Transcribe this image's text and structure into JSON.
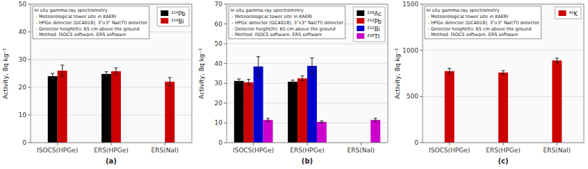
{
  "chart_data": [
    {
      "type": "bar",
      "xlabel": "(a)",
      "ylabel": "Activity, Bq kg⁻¹",
      "categories": [
        "ISOCS(HPGe)",
        "ERS(HPGe)",
        "ERS(NaI)"
      ],
      "series": [
        {
          "name": "²¹⁴Pb",
          "color": "#000000",
          "values": [
            24.0,
            24.8,
            null
          ],
          "errors": [
            1.0,
            0.8,
            null
          ]
        },
        {
          "name": "²¹⁴Bi",
          "color": "#cc0000",
          "values": [
            26.0,
            25.8,
            22.0
          ],
          "errors": [
            2.0,
            1.2,
            1.5
          ]
        }
      ],
      "ylim": [
        0,
        50
      ],
      "yticks": [
        0,
        10,
        20,
        30,
        40,
        50
      ],
      "grid": true,
      "legend": "upper right",
      "annotation": "In situ gamma-ray spectrometry\n - Meteorological tower site in KAERI\n - HPGe detector (GC4018), 3\"x3\" NaI(Tl) detector\n - Detector height(h): 65 cm above the ground\n - Method: ISOCS software, ERS software"
    },
    {
      "type": "bar",
      "xlabel": "(b)",
      "ylabel": "Activity, Bq kg⁻¹",
      "categories": [
        "ISOCS(HPGe)",
        "ERS(HPGe)",
        "ERS(NaI)"
      ],
      "series": [
        {
          "name": "²²⁸Ac",
          "color": "#000000",
          "values": [
            31.2,
            30.8,
            null
          ],
          "errors": [
            1.0,
            0.8,
            null
          ]
        },
        {
          "name": "²¹²Pb",
          "color": "#cc0000",
          "values": [
            30.5,
            32.5,
            null
          ],
          "errors": [
            1.5,
            1.2,
            null
          ]
        },
        {
          "name": "²¹²Bi",
          "color": "#0000cc",
          "values": [
            38.5,
            38.8,
            null
          ],
          "errors": [
            5.0,
            4.0,
            null
          ]
        },
        {
          "name": "²⁰⁸Tl",
          "color": "#cc00cc",
          "values": [
            11.5,
            10.5,
            11.5
          ],
          "errors": [
            0.8,
            0.5,
            0.8
          ]
        }
      ],
      "ylim": [
        0,
        70
      ],
      "yticks": [
        0,
        10,
        20,
        30,
        40,
        50,
        60,
        70
      ],
      "grid": true,
      "legend": "upper right",
      "annotation": "In situ gamma-ray spectrometry\n - Meteorological tower site in KAERI\n - HPGe detector (GC4018), 3\"x3\" NaI(Tl) detector\n - Detector height(h): 65 cm above the ground\n - Method: ISOCS software, ERS software"
    },
    {
      "type": "bar",
      "xlabel": "(c)",
      "ylabel": "Activity, Bq kg⁻¹",
      "categories": [
        "ISOCS(HPGe)",
        "ERS(HPGe)",
        "ERS(NaI)"
      ],
      "series": [
        {
          "name": "⁴⁰K",
          "color": "#cc0000",
          "values": [
            775,
            760,
            890
          ],
          "errors": [
            30,
            20,
            25
          ]
        }
      ],
      "ylim": [
        0,
        1500
      ],
      "yticks": [
        0,
        500,
        1000,
        1500
      ],
      "grid": true,
      "legend": "upper right",
      "annotation": "In situ gamma-ray spectrometry\n - Meteorological tower site in KAERI\n - HPGe detector (GC4018), 3\"x3\" NaI(Tl) detector\n - Detector height(h): 65 cm above the ground\n - Method: ISOCS software, ERS software"
    }
  ]
}
